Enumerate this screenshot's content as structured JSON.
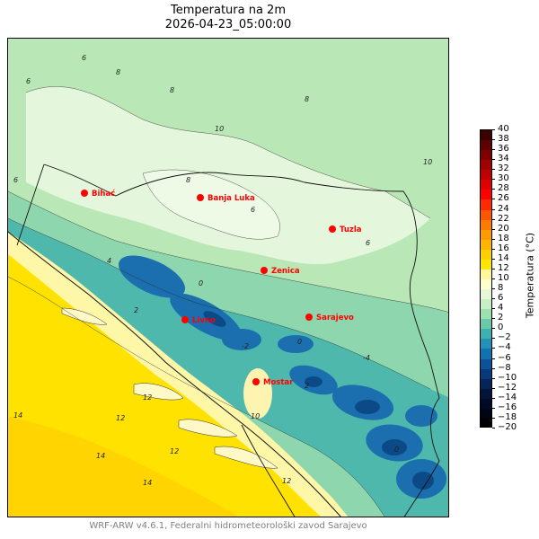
{
  "header": {
    "title": "Temperatura na 2m",
    "subtitle": "2026-04-23_05:00:00"
  },
  "map": {
    "variable": "2m temperature",
    "cities": [
      {
        "name": "Bihać",
        "label": "Bihać"
      },
      {
        "name": "Banja Luka",
        "label": "Banja Luka"
      },
      {
        "name": "Tuzla",
        "label": "Tuzla"
      },
      {
        "name": "Zenica",
        "label": "Zenica"
      },
      {
        "name": "Sarajevo",
        "label": "Sarajevo"
      },
      {
        "name": "Livno",
        "label": "Livno"
      },
      {
        "name": "Mostar",
        "label": "Mostar"
      }
    ],
    "city_marker_color": "#ff0000",
    "contour_labels": [
      "6",
      "8",
      "10",
      "4",
      "6",
      "8",
      "10",
      "12",
      "14",
      "2",
      "0",
      "-2",
      "-4"
    ]
  },
  "colorbar": {
    "label": "Temperatura (°C)",
    "ticks": [
      "40",
      "38",
      "36",
      "34",
      "32",
      "30",
      "28",
      "26",
      "24",
      "22",
      "20",
      "18",
      "16",
      "14",
      "12",
      "10",
      "8",
      "6",
      "4",
      "2",
      "0",
      "−2",
      "−4",
      "−6",
      "−8",
      "−10",
      "−12",
      "−14",
      "−16",
      "−18",
      "−20"
    ],
    "colors": [
      "#3b0000",
      "#5c0000",
      "#800000",
      "#a00000",
      "#c00000",
      "#e00000",
      "#ff0000",
      "#ff2a00",
      "#ff5500",
      "#ff7a00",
      "#ff9a00",
      "#ffb400",
      "#ffd000",
      "#ffe600",
      "#fff799",
      "#ffffcc",
      "#e8f7d8",
      "#c8f0c8",
      "#9fe0b0",
      "#6ac9a8",
      "#3fb0b0",
      "#2292b8",
      "#1272b0",
      "#0a529a",
      "#063a7a",
      "#04245a",
      "#02143a",
      "#010a24",
      "#000514",
      "#000000"
    ]
  },
  "footer": {
    "text": "WRF-ARW v4.6.1, Federalni hidrometeorološki zavod Sarajevo"
  }
}
